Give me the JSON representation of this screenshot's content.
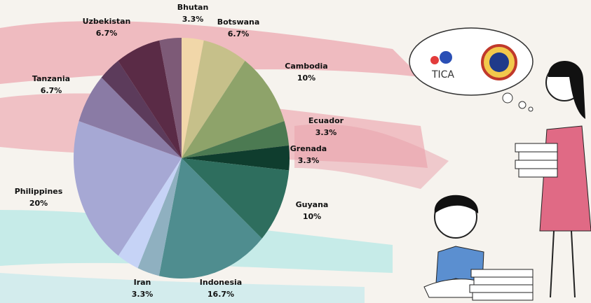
{
  "chart_data": {
    "type": "pie",
    "categories": [
      "Bhutan",
      "Botswana",
      "Cambodia",
      "Ecuador",
      "Grenada",
      "Guyana",
      "Indonesia",
      "Iran",
      null,
      "Philippines",
      "Tanzania",
      null,
      "Uzbekistan",
      null
    ],
    "values": [
      3.3,
      6.7,
      10,
      3.3,
      3.3,
      10,
      16.7,
      3.3,
      3.3,
      20,
      6.7,
      3.3,
      6.7,
      3.3
    ],
    "value_labels": [
      "3.3%",
      "6.7%",
      "10%",
      "3.3%",
      "3.3%",
      "10%",
      "16.7%",
      "3.3%",
      null,
      "20%",
      "6.7%",
      null,
      "6.7%",
      null
    ],
    "colors": [
      "#f1d7a9",
      "#c6c08a",
      "#8ea36a",
      "#4c7a52",
      "#0f3d2e",
      "#2e6e5e",
      "#4f8d8f",
      "#8fb0c0",
      "#c6d3f6",
      "#a6a8d4",
      "#8a7ba5",
      "#5c3b5b",
      "#5a2b46",
      "#7d5a77"
    ]
  },
  "illustration": {
    "logo_text": "TICA"
  }
}
